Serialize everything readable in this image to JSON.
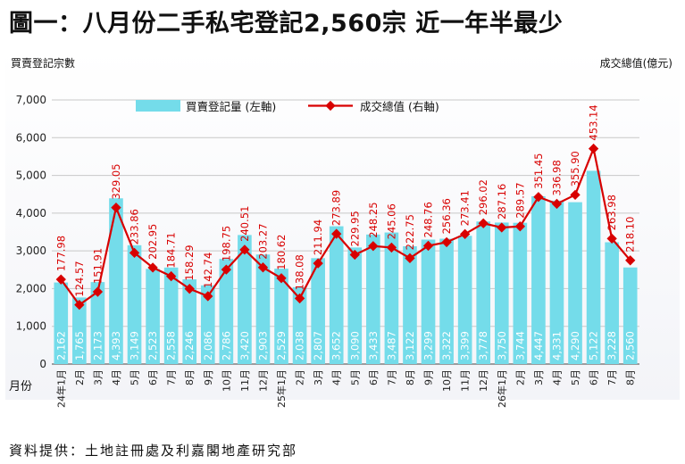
{
  "title": "圖一：八月份二手私宅登記2,560宗 近一年半最少",
  "source": "資料提供：土地註冊處及利嘉閣地產研究部",
  "colors": {
    "bar": "#74dcea",
    "line": "#d80000",
    "grid": "#c8c8c8"
  },
  "chart_data": {
    "type": "bar+line",
    "ylabel_left": "買賣登記宗數",
    "ylabel_right": "成交總值(億元)",
    "xlabel": "月份",
    "ylim_left": [
      0,
      7000
    ],
    "yticks_left": [
      "0",
      "1,000",
      "2,000",
      "3,000",
      "4,000",
      "5,000",
      "6,000",
      "7,000"
    ],
    "categories": [
      "24年1月",
      "2月",
      "3月",
      "4月",
      "5月",
      "6月",
      "7月",
      "8月",
      "9月",
      "10月",
      "11月",
      "12月",
      "25年1月",
      "2月",
      "3月",
      "4月",
      "5月",
      "6月",
      "7月",
      "8月",
      "9月",
      "10月",
      "11月",
      "12月",
      "26年1月",
      "2月",
      "3月",
      "4月",
      "5月",
      "6月",
      "7月",
      "8月"
    ],
    "grid": true,
    "legend_placement": "top-left",
    "series": [
      {
        "name": "買賣登記量 (左軸)",
        "type": "bar",
        "axis": "left",
        "values": [
          2162,
          1765,
          2173,
          4393,
          3149,
          2523,
          2558,
          2246,
          2086,
          2786,
          3420,
          2903,
          2529,
          2038,
          2807,
          3652,
          3090,
          3433,
          3487,
          3122,
          3299,
          3322,
          3399,
          3778,
          3750,
          3744,
          4447,
          4331,
          4290,
          5122,
          3228,
          2560
        ],
        "labels": [
          "2,162",
          "1,765",
          "2,173",
          "4,393",
          "3,149",
          "2,523",
          "2,558",
          "2,246",
          "2,086",
          "2,786",
          "3,420",
          "2,903",
          "2,529",
          "2,038",
          "2,807",
          "3,652",
          "3,090",
          "3,433",
          "3,487",
          "3,122",
          "3,299",
          "3,322",
          "3,399",
          "3,778",
          "3,750",
          "3,744",
          "4,447",
          "4,331",
          "4,290",
          "5,122",
          "3,228",
          "2,560"
        ]
      },
      {
        "name": "成交總值 (右軸)",
        "type": "line",
        "axis": "right",
        "values": [
          177.98,
          124.57,
          151.91,
          329.05,
          233.86,
          202.95,
          184.71,
          158.29,
          142.74,
          198.75,
          240.51,
          203.27,
          180.62,
          138.08,
          211.94,
          273.89,
          229.95,
          248.25,
          245.06,
          222.75,
          248.76,
          256.36,
          273.41,
          296.02,
          287.16,
          289.57,
          351.45,
          336.98,
          355.9,
          453.14,
          263.98,
          218.1
        ],
        "labels": [
          "177.98",
          "124.57",
          "151.91",
          "329.05",
          "233.86",
          "202.95",
          "184.71",
          "158.29",
          "142.74",
          "198.75",
          "240.51",
          "203.27",
          "180.62",
          "138.08",
          "211.94",
          "273.89",
          "229.95",
          "248.25",
          "245.06",
          "222.75",
          "248.76",
          "256.36",
          "273.41",
          "296.02",
          "287.16",
          "289.57",
          "351.45",
          "336.98",
          "355.90",
          "453.14",
          "263.98",
          "218.10"
        ]
      }
    ]
  }
}
